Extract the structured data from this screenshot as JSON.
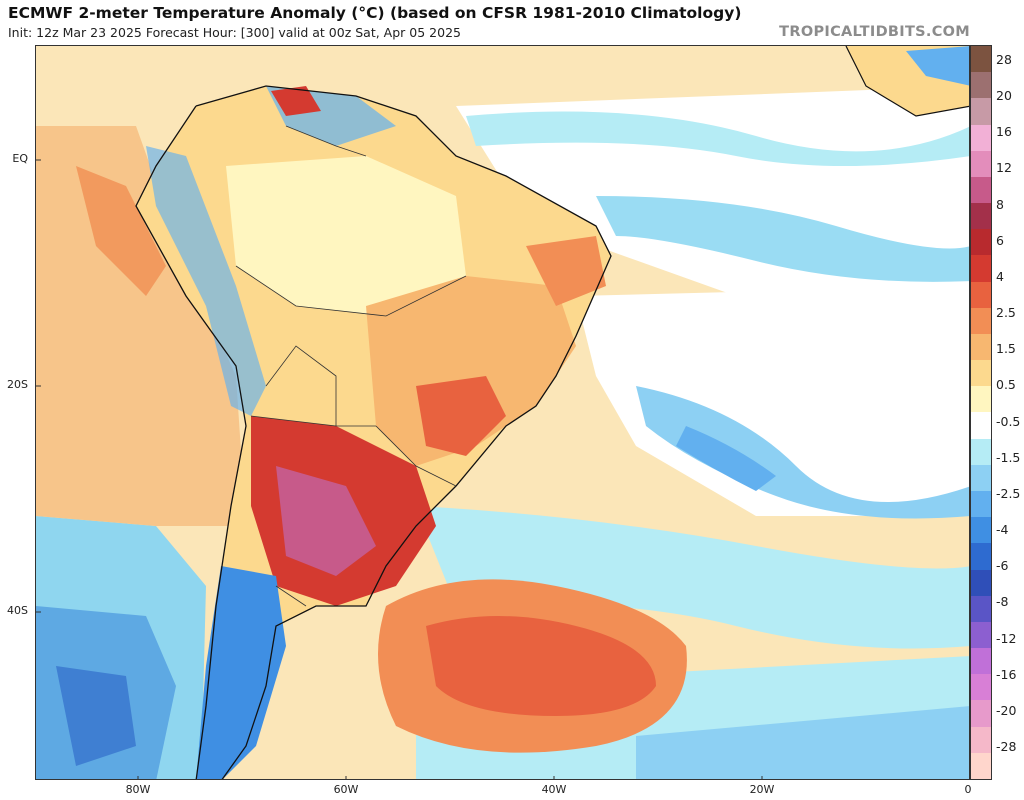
{
  "header": {
    "title": "ECMWF 2-meter Temperature Anomaly (°C) (based on CFSR 1981-2010 Climatology)",
    "subtitle": "Init: 12z Mar 23 2025   Forecast Hour: [300]   valid at 00z Sat, Apr 05 2025",
    "credit": "TROPICALTIDBITS.COM"
  },
  "map": {
    "lat_labels": [
      "EQ",
      "20S",
      "40S"
    ],
    "lon_labels": [
      "80W",
      "60W",
      "40W",
      "20W",
      "0"
    ]
  },
  "colorbar": {
    "labels": [
      "28",
      "20",
      "16",
      "12",
      "8",
      "6",
      "4",
      "2.5",
      "1.5",
      "0.5",
      "-0.5",
      "-1.5",
      "-2.5",
      "-4",
      "-6",
      "-8",
      "-12",
      "-16",
      "-20",
      "-28"
    ],
    "colors": [
      "#ffd6cc",
      "#f5b8c9",
      "#e79acb",
      "#d87fd6",
      "#c070d8",
      "#8c5fd0",
      "#5a55c6",
      "#2f4fb8",
      "#2e6bd0",
      "#3f8fe3",
      "#62b0ef",
      "#8dd0f3",
      "#b5ecf5",
      "#ffffff",
      "#fff6c0",
      "#fcd98e",
      "#f7b770",
      "#f28e55",
      "#e8623f",
      "#d43a30",
      "#b82a2e",
      "#a3304a",
      "#c75a8a",
      "#e38dbb",
      "#f2b0d6",
      "#c79aa6",
      "#9c7070",
      "#7c5340"
    ]
  }
}
